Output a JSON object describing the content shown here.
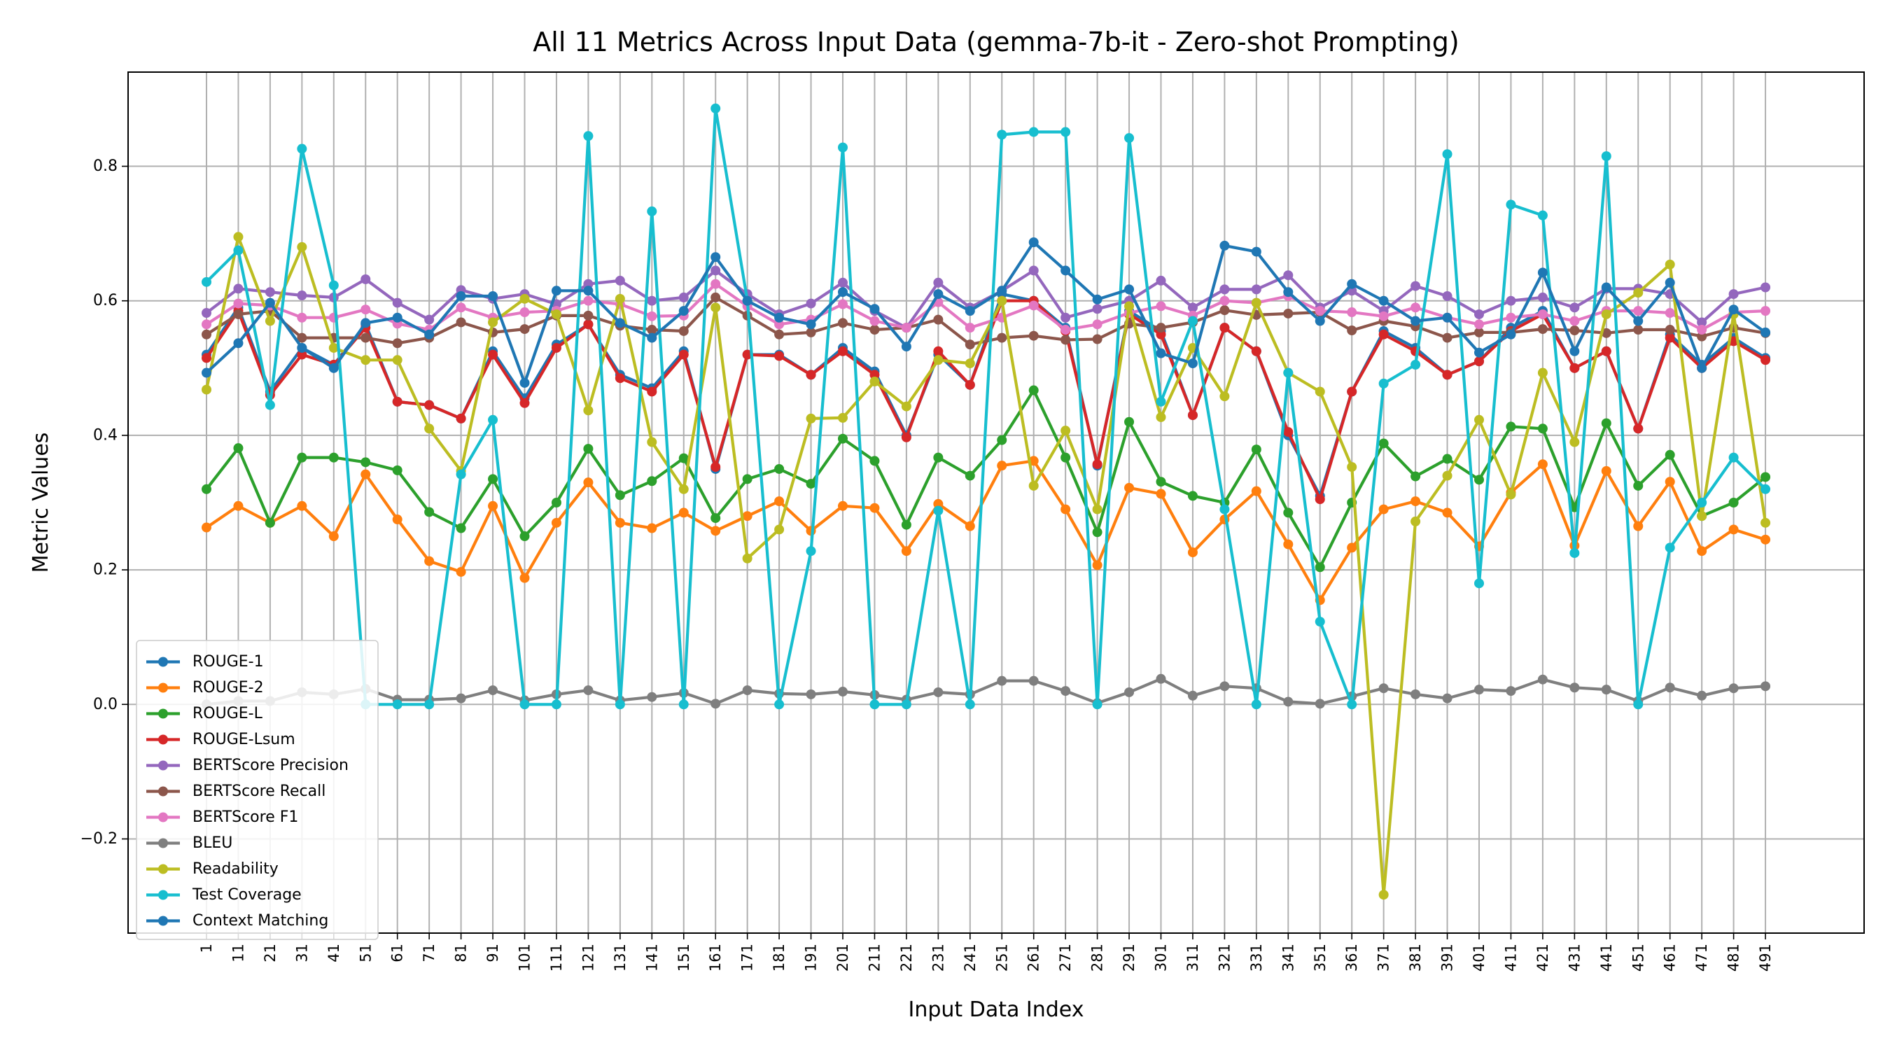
{
  "chart_data": {
    "type": "line",
    "title": "All 11 Metrics Across Input Data (gemma-7b-it - Zero-shot Prompting)",
    "xlabel": "Input Data Index",
    "ylabel": "Metric Values",
    "ylim": [
      -0.34,
      0.94
    ],
    "yticks": [
      -0.2,
      0.0,
      0.2,
      0.4,
      0.6,
      0.8
    ],
    "ytick_labels": [
      "−0.2",
      "0.0",
      "0.2",
      "0.4",
      "0.6",
      "0.8"
    ],
    "grid": true,
    "legend_position": "lower-left",
    "x": [
      1,
      11,
      21,
      31,
      41,
      51,
      61,
      71,
      81,
      91,
      101,
      111,
      121,
      131,
      141,
      151,
      161,
      171,
      181,
      191,
      201,
      211,
      221,
      231,
      241,
      251,
      261,
      271,
      281,
      291,
      301,
      311,
      321,
      331,
      341,
      351,
      361,
      371,
      381,
      391,
      401,
      411,
      421,
      431,
      441,
      451,
      461,
      471,
      481,
      491
    ],
    "series": [
      {
        "name": "ROUGE-1",
        "color": "#1f77b4",
        "values": [
          0.52,
          0.59,
          0.465,
          0.53,
          0.505,
          0.565,
          0.45,
          0.445,
          0.425,
          0.525,
          0.455,
          0.535,
          0.565,
          0.49,
          0.47,
          0.525,
          0.35,
          0.52,
          0.52,
          0.49,
          0.53,
          0.495,
          0.4,
          0.52,
          0.475,
          0.61,
          0.6,
          0.56,
          0.355,
          0.585,
          0.555,
          0.43,
          0.56,
          0.525,
          0.4,
          0.31,
          0.465,
          0.555,
          0.53,
          0.49,
          0.51,
          0.56,
          0.585,
          0.5,
          0.525,
          0.41,
          0.55,
          0.505,
          0.545,
          0.515
        ]
      },
      {
        "name": "ROUGE-2",
        "color": "#ff7f0e",
        "values": [
          0.263,
          0.295,
          0.27,
          0.295,
          0.25,
          0.342,
          0.275,
          0.213,
          0.197,
          0.295,
          0.188,
          0.27,
          0.33,
          0.27,
          0.262,
          0.285,
          0.258,
          0.28,
          0.302,
          0.258,
          0.295,
          0.292,
          0.228,
          0.298,
          0.265,
          0.355,
          0.362,
          0.29,
          0.207,
          0.322,
          0.313,
          0.226,
          0.275,
          0.317,
          0.238,
          0.155,
          0.233,
          0.29,
          0.302,
          0.285,
          0.235,
          0.315,
          0.357,
          0.236,
          0.347,
          0.265,
          0.331,
          0.228,
          0.26,
          0.245
        ]
      },
      {
        "name": "ROUGE-L",
        "color": "#2ca02c",
        "values": [
          0.32,
          0.381,
          0.27,
          0.367,
          0.367,
          0.36,
          0.348,
          0.286,
          0.262,
          0.335,
          0.25,
          0.3,
          0.38,
          0.311,
          0.332,
          0.366,
          0.277,
          0.335,
          0.35,
          0.328,
          0.395,
          0.362,
          0.267,
          0.367,
          0.34,
          0.393,
          0.467,
          0.367,
          0.256,
          0.42,
          0.331,
          0.31,
          0.3,
          0.379,
          0.285,
          0.204,
          0.3,
          0.388,
          0.339,
          0.365,
          0.334,
          0.413,
          0.41,
          0.293,
          0.418,
          0.325,
          0.371,
          0.28,
          0.3,
          0.338
        ]
      },
      {
        "name": "ROUGE-Lsum",
        "color": "#d62728",
        "values": [
          0.515,
          0.585,
          0.46,
          0.52,
          0.505,
          0.56,
          0.45,
          0.445,
          0.425,
          0.52,
          0.448,
          0.53,
          0.565,
          0.485,
          0.465,
          0.52,
          0.353,
          0.52,
          0.518,
          0.49,
          0.525,
          0.49,
          0.397,
          0.525,
          0.475,
          0.6,
          0.6,
          0.555,
          0.357,
          0.58,
          0.55,
          0.43,
          0.56,
          0.525,
          0.405,
          0.305,
          0.465,
          0.55,
          0.525,
          0.49,
          0.51,
          0.555,
          0.58,
          0.5,
          0.525,
          0.41,
          0.545,
          0.5,
          0.54,
          0.512
        ]
      },
      {
        "name": "BERTScore Precision",
        "color": "#9467bd",
        "values": [
          0.582,
          0.618,
          0.613,
          0.608,
          0.605,
          0.632,
          0.597,
          0.572,
          0.616,
          0.603,
          0.61,
          0.595,
          0.625,
          0.63,
          0.6,
          0.605,
          0.645,
          0.61,
          0.58,
          0.596,
          0.627,
          0.585,
          0.56,
          0.627,
          0.59,
          0.615,
          0.645,
          0.575,
          0.588,
          0.6,
          0.63,
          0.59,
          0.617,
          0.617,
          0.638,
          0.59,
          0.615,
          0.585,
          0.622,
          0.607,
          0.58,
          0.6,
          0.605,
          0.59,
          0.618,
          0.618,
          0.61,
          0.568,
          0.61,
          0.62
        ]
      },
      {
        "name": "BERTScore Recall",
        "color": "#8c564b",
        "values": [
          0.55,
          0.58,
          0.585,
          0.545,
          0.545,
          0.545,
          0.537,
          0.545,
          0.568,
          0.553,
          0.558,
          0.578,
          0.578,
          0.563,
          0.557,
          0.555,
          0.605,
          0.578,
          0.55,
          0.553,
          0.567,
          0.557,
          0.56,
          0.572,
          0.535,
          0.545,
          0.548,
          0.542,
          0.543,
          0.566,
          0.56,
          0.568,
          0.586,
          0.579,
          0.581,
          0.583,
          0.556,
          0.57,
          0.562,
          0.545,
          0.553,
          0.553,
          0.558,
          0.556,
          0.552,
          0.557,
          0.557,
          0.547,
          0.56,
          0.552
        ]
      },
      {
        "name": "BERTScore F1",
        "color": "#e377c2",
        "values": [
          0.565,
          0.596,
          0.593,
          0.575,
          0.575,
          0.587,
          0.566,
          0.557,
          0.59,
          0.575,
          0.583,
          0.585,
          0.6,
          0.595,
          0.577,
          0.578,
          0.625,
          0.592,
          0.565,
          0.572,
          0.595,
          0.57,
          0.56,
          0.598,
          0.56,
          0.575,
          0.593,
          0.557,
          0.565,
          0.582,
          0.592,
          0.578,
          0.6,
          0.597,
          0.607,
          0.585,
          0.583,
          0.577,
          0.59,
          0.575,
          0.565,
          0.575,
          0.58,
          0.57,
          0.585,
          0.585,
          0.582,
          0.557,
          0.583,
          0.585
        ]
      },
      {
        "name": "BLEU",
        "color": "#7f7f7f",
        "values": [
          0.0,
          0.005,
          0.005,
          0.018,
          0.015,
          0.023,
          0.007,
          0.007,
          0.009,
          0.021,
          0.006,
          0.015,
          0.021,
          0.006,
          0.011,
          0.017,
          0.001,
          0.021,
          0.016,
          0.015,
          0.019,
          0.014,
          0.007,
          0.018,
          0.015,
          0.035,
          0.035,
          0.02,
          0.002,
          0.018,
          0.038,
          0.013,
          0.027,
          0.024,
          0.004,
          0.001,
          0.012,
          0.024,
          0.015,
          0.009,
          0.022,
          0.02,
          0.037,
          0.025,
          0.022,
          0.005,
          0.025,
          0.013,
          0.024,
          0.027
        ]
      },
      {
        "name": "Readability",
        "color": "#bcbd22",
        "values": [
          0.468,
          0.695,
          0.57,
          0.68,
          0.53,
          0.512,
          0.512,
          0.41,
          0.347,
          0.568,
          0.603,
          0.58,
          0.437,
          0.603,
          0.39,
          0.32,
          0.59,
          0.217,
          0.26,
          0.425,
          0.426,
          0.48,
          0.443,
          0.512,
          0.507,
          0.6,
          0.325,
          0.407,
          0.29,
          0.592,
          0.427,
          0.53,
          0.458,
          0.597,
          0.493,
          0.465,
          0.353,
          -0.283,
          0.272,
          0.34,
          0.423,
          0.312,
          0.493,
          0.39,
          0.58,
          0.612,
          0.654,
          0.28,
          0.58,
          0.27
        ]
      },
      {
        "name": "Test Coverage",
        "color": "#17becf",
        "values": [
          0.628,
          0.675,
          0.445,
          0.826,
          0.623,
          0.0,
          0.0,
          0.0,
          0.342,
          0.423,
          0.0,
          0.0,
          0.845,
          0.0,
          0.733,
          0.0,
          0.886,
          0.6,
          0.0,
          0.228,
          0.828,
          0.0,
          0.0,
          0.288,
          0.0,
          0.847,
          0.851,
          0.851,
          0.0,
          0.842,
          0.45,
          0.57,
          0.29,
          0.0,
          0.493,
          0.123,
          0.0,
          0.477,
          0.505,
          0.818,
          0.18,
          0.743,
          0.727,
          0.225,
          0.815,
          0.0,
          0.233,
          0.3,
          0.367,
          0.32
        ]
      },
      {
        "name": "Context Matching",
        "color": "#1f77b4",
        "values": [
          0.493,
          0.537,
          0.597,
          0.53,
          0.5,
          0.567,
          0.575,
          0.55,
          0.607,
          0.607,
          0.478,
          0.615,
          0.615,
          0.567,
          0.545,
          0.585,
          0.665,
          0.6,
          0.575,
          0.565,
          0.613,
          0.588,
          0.532,
          0.61,
          0.585,
          0.615,
          0.687,
          0.645,
          0.602,
          0.617,
          0.522,
          0.507,
          0.682,
          0.673,
          0.613,
          0.57,
          0.625,
          0.6,
          0.57,
          0.575,
          0.523,
          0.55,
          0.642,
          0.525,
          0.62,
          0.57,
          0.627,
          0.5,
          0.587,
          0.553
        ]
      }
    ]
  }
}
